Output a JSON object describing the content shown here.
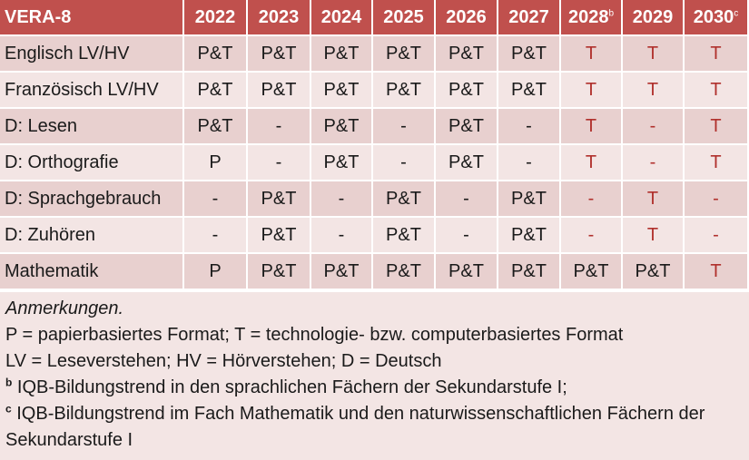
{
  "table": {
    "title": "VERA-8",
    "years": [
      {
        "label": "2022",
        "mark": ""
      },
      {
        "label": "2023",
        "mark": ""
      },
      {
        "label": "2024",
        "mark": ""
      },
      {
        "label": "2025",
        "mark": ""
      },
      {
        "label": "2026",
        "mark": ""
      },
      {
        "label": "2027",
        "mark": ""
      },
      {
        "label": "2028",
        "mark": "b"
      },
      {
        "label": "2029",
        "mark": ""
      },
      {
        "label": "2030",
        "mark": "c"
      }
    ],
    "rows": [
      {
        "label": "Englisch LV/HV",
        "cells": [
          "P&T",
          "P&T",
          "P&T",
          "P&T",
          "P&T",
          "P&T",
          "T",
          "T",
          "T"
        ]
      },
      {
        "label": "Französisch LV/HV",
        "cells": [
          "P&T",
          "P&T",
          "P&T",
          "P&T",
          "P&T",
          "P&T",
          "T",
          "T",
          "T"
        ]
      },
      {
        "label": "D: Lesen",
        "cells": [
          "P&T",
          "-",
          "P&T",
          "-",
          "P&T",
          "-",
          "T",
          "-",
          "T"
        ]
      },
      {
        "label": "D: Orthografie",
        "cells": [
          "P",
          "-",
          "P&T",
          "-",
          "P&T",
          "-",
          "T",
          "-",
          "T"
        ]
      },
      {
        "label": "D: Sprachgebrauch",
        "cells": [
          "-",
          "P&T",
          "-",
          "P&T",
          "-",
          "P&T",
          "-",
          "T",
          "-"
        ]
      },
      {
        "label": "D: Zuhören",
        "cells": [
          "-",
          "P&T",
          "-",
          "P&T",
          "-",
          "P&T",
          "-",
          "T",
          "-"
        ]
      },
      {
        "label": "Mathematik",
        "cells": [
          "P",
          "P&T",
          "P&T",
          "P&T",
          "P&T",
          "P&T",
          "P&T",
          "P&T",
          "T"
        ]
      }
    ]
  },
  "notes": {
    "heading": "Anmerkungen.",
    "line1": "P = papierbasiertes Format; T = technologie- bzw. computerbasiertes Format",
    "line2": "LV = Leseverstehen; HV = Hörverstehen; D = Deutsch",
    "b_mark": "b",
    "b_text": " IQB-Bildungstrend in den sprachlichen Fächern der Sekundarstufe I;",
    "c_mark": "c",
    "c_text": " IQB-Bildungstrend im Fach Mathematik und den naturwissenschaftlichen Fächern der Sekundarstufe I"
  },
  "colors": {
    "header": "#c0504d",
    "row_odd": "#e8d0cf",
    "row_even": "#f3e5e4",
    "technology_text": "#b0302c"
  }
}
